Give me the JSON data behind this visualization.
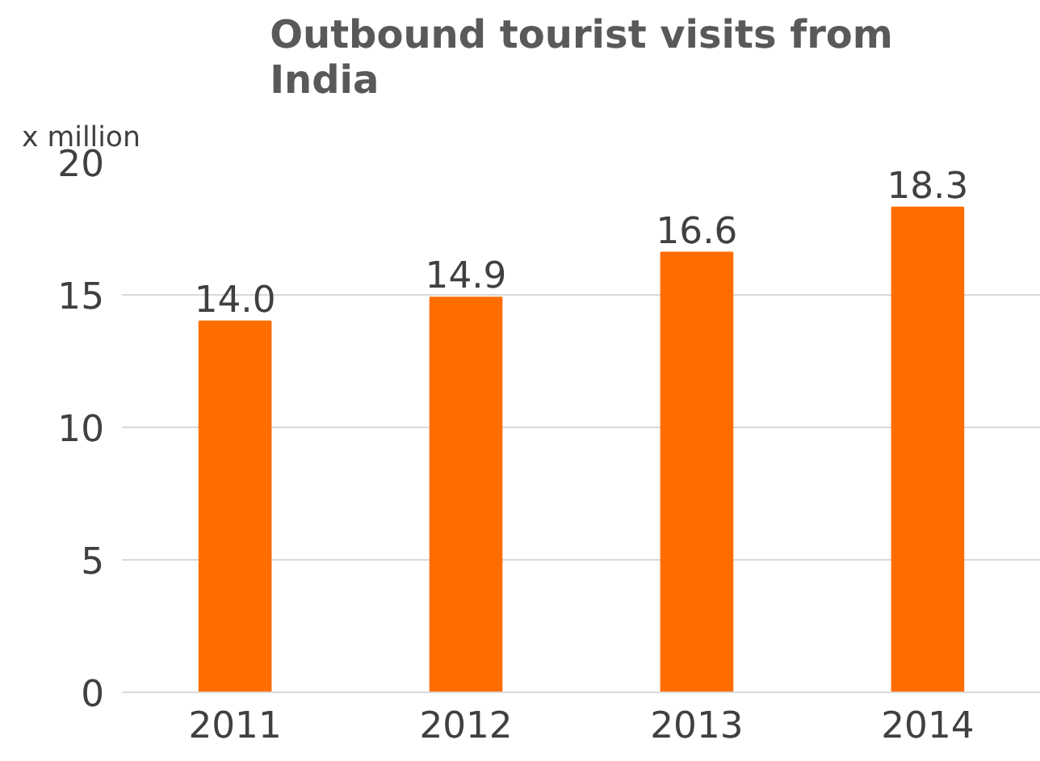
{
  "chart_data": {
    "type": "bar",
    "title": "Outbound tourist visits from India",
    "ylabel": "x million",
    "categories": [
      "2011",
      "2012",
      "2013",
      "2014"
    ],
    "values": [
      14.0,
      14.9,
      16.6,
      18.3
    ],
    "value_labels": [
      "14.0",
      "14.9",
      "16.6",
      "18.3"
    ],
    "color": "#ff6d00",
    "ylim": [
      0,
      20
    ],
    "yticks": [
      0,
      5,
      10,
      15,
      20
    ],
    "grid": "y"
  }
}
